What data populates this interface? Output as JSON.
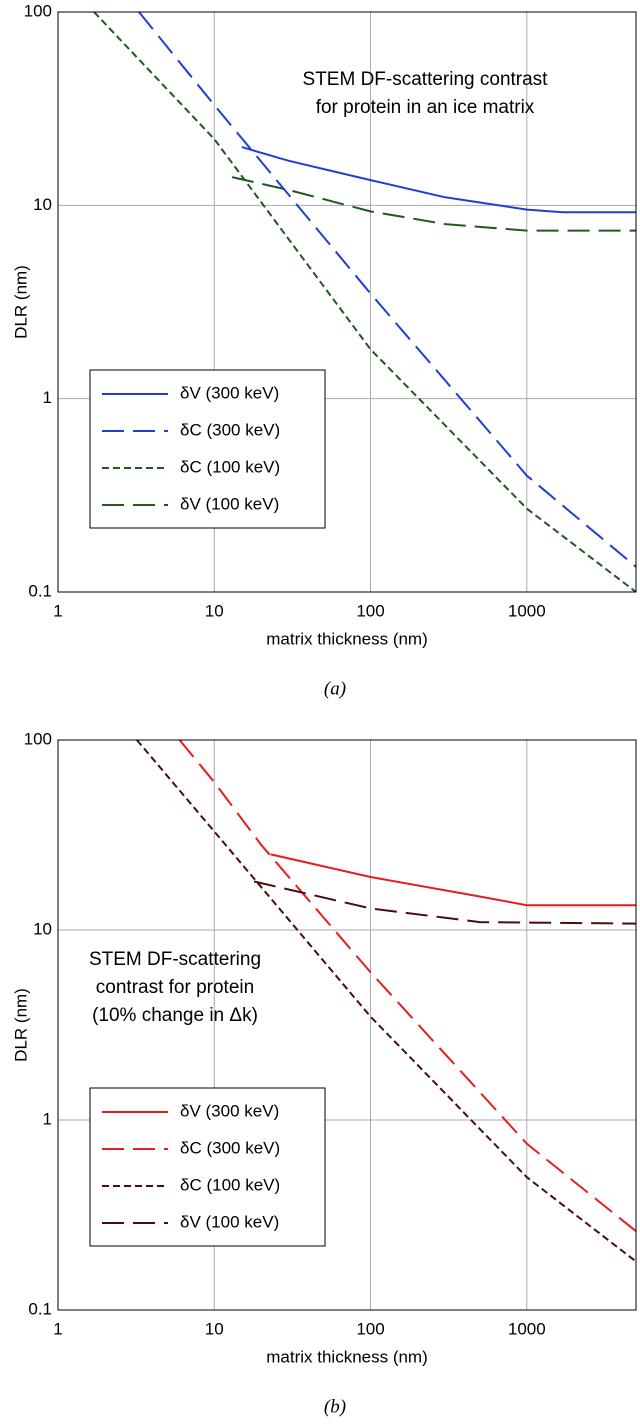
{
  "chart_data": [
    {
      "type": "line",
      "caption": "(a)",
      "xlabel": "matrix thickness (nm)",
      "ylabel": "DLR (nm)",
      "annotation": [
        "STEM DF-scattering contrast",
        "for protein in an ice matrix"
      ],
      "xscale": "log",
      "yscale": "log",
      "xlim": [
        1,
        5000
      ],
      "ylim": [
        0.1,
        100
      ],
      "xticks": [
        1,
        10,
        100,
        1000
      ],
      "yticks": [
        0.1,
        1,
        10,
        100
      ],
      "grid": true,
      "legend": "lower left",
      "series": [
        {
          "name": "δV (300 keV)",
          "color": "#1d3fd6",
          "dash": "solid",
          "x": [
            15,
            30,
            100,
            300,
            1000,
            1700,
            5000
          ],
          "values": [
            20,
            17,
            13.5,
            11,
            9.5,
            9.2,
            9.2
          ]
        },
        {
          "name": "δC (300 keV)",
          "color": "#1d3fd6",
          "dash": "long-dash",
          "x": [
            3.3,
            10,
            100,
            1000,
            5000
          ],
          "values": [
            100,
            33,
            3.5,
            0.4,
            0.135
          ]
        },
        {
          "name": "δC (100 keV)",
          "color": "#1e5a1e",
          "dash": "short-dash",
          "x": [
            1.7,
            10,
            100,
            1000,
            5000
          ],
          "values": [
            100,
            22,
            1.8,
            0.27,
            0.1
          ]
        },
        {
          "name": "δV (100 keV)",
          "color": "#1e5a1e",
          "dash": "long-dash",
          "x": [
            13,
            30,
            100,
            300,
            1000,
            5000
          ],
          "values": [
            14,
            12,
            9.3,
            8,
            7.4,
            7.4
          ]
        }
      ]
    },
    {
      "type": "line",
      "caption": "(b)",
      "xlabel": "matrix thickness (nm)",
      "ylabel": "DLR (nm)",
      "annotation": [
        "STEM DF-scattering",
        "contrast for protein",
        "(10% change in Δk)"
      ],
      "xscale": "log",
      "yscale": "log",
      "xlim": [
        1,
        5000
      ],
      "ylim": [
        0.1,
        100
      ],
      "xticks": [
        1,
        10,
        100,
        1000
      ],
      "yticks": [
        0.1,
        1,
        10,
        100
      ],
      "grid": true,
      "legend": "lower left",
      "series": [
        {
          "name": "δV (300 keV)",
          "color": "#e41e1e",
          "dash": "solid",
          "x": [
            23,
            100,
            500,
            1000,
            5000
          ],
          "values": [
            25,
            19,
            15,
            13.5,
            13.5
          ]
        },
        {
          "name": "δC (300 keV)",
          "color": "#e41e1e",
          "dash": "long-dash",
          "x": [
            6,
            10,
            20,
            100,
            1000,
            5000
          ],
          "values": [
            100,
            60,
            28,
            6,
            0.75,
            0.26
          ]
        },
        {
          "name": "δC (100 keV)",
          "color": "#4a0c0c",
          "dash": "short-dash",
          "x": [
            3.2,
            10,
            100,
            1000,
            5000
          ],
          "values": [
            100,
            33,
            3.5,
            0.5,
            0.18
          ]
        },
        {
          "name": "δV (100 keV)",
          "color": "#4a0c0c",
          "dash": "long-dash",
          "x": [
            18,
            100,
            500,
            5000
          ],
          "values": [
            18,
            13,
            11,
            10.8
          ]
        }
      ]
    }
  ]
}
